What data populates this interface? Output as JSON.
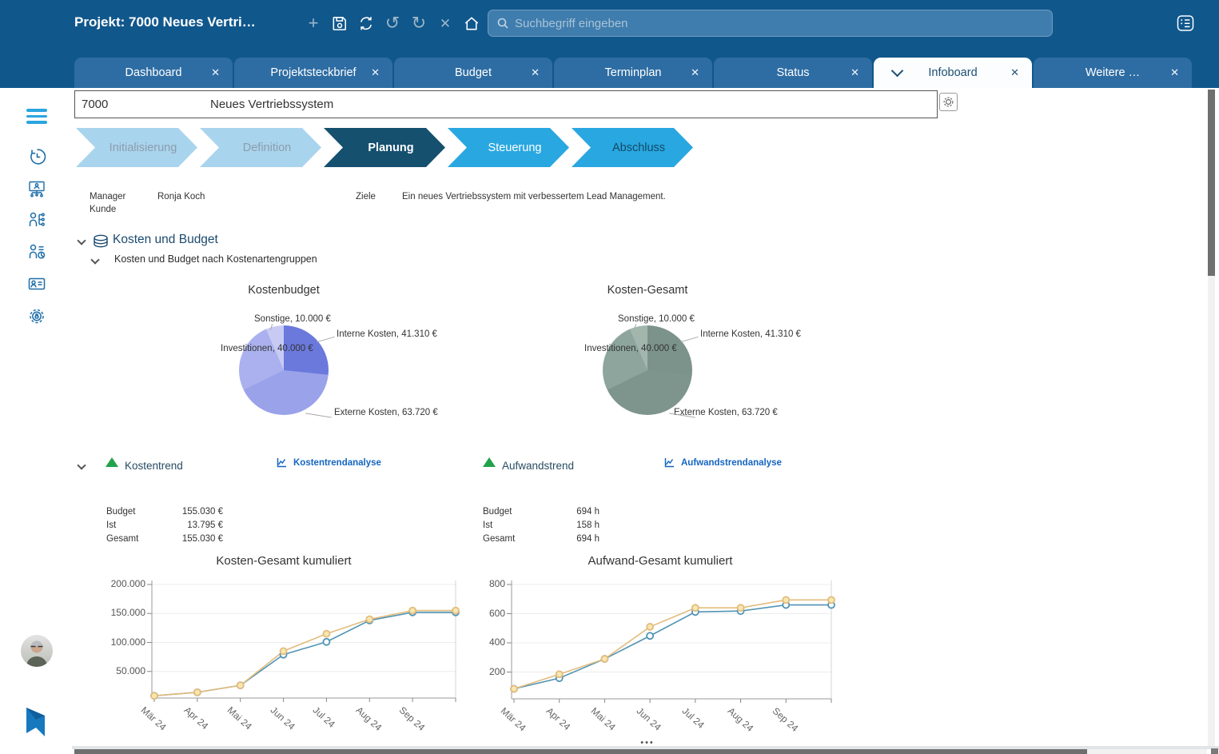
{
  "header": {
    "title": "Projekt: 7000 Neues Vertri…",
    "search_placeholder": "Suchbegriff eingeben",
    "toolbar_icons": [
      "add",
      "save",
      "refresh",
      "undo",
      "redo",
      "close",
      "home",
      "search",
      "protocol"
    ]
  },
  "tabs": [
    {
      "label": "Dashboard",
      "active": false
    },
    {
      "label": "Projektsteckbrief",
      "active": false
    },
    {
      "label": "Budget",
      "active": false
    },
    {
      "label": "Terminplan",
      "active": false
    },
    {
      "label": "Status",
      "active": false
    },
    {
      "label": "Infoboard",
      "active": true
    },
    {
      "label": "Weitere …",
      "active": false
    }
  ],
  "sidebar": {
    "items": [
      "menu",
      "history",
      "projects",
      "resources",
      "reports",
      "contacts",
      "administration"
    ]
  },
  "project": {
    "code": "7000",
    "name": "Neues Vertriebssystem"
  },
  "phases": [
    {
      "label": "Initialisierung"
    },
    {
      "label": "Definition"
    },
    {
      "label": "Planung",
      "active": true
    },
    {
      "label": "Steuerung"
    },
    {
      "label": "Abschluss"
    }
  ],
  "details": {
    "manager_label": "Manager",
    "manager_value": "Ronja Koch",
    "kunde_label": "Kunde",
    "ziele_label": "Ziele",
    "ziele_value": "Ein neues Vertriebssystem mit verbessertem Lead Management."
  },
  "sections": {
    "kosten_budget": {
      "title": "Kosten und Budget",
      "subtitle": "Kosten und Budget nach Kostenartengruppen"
    },
    "kostentrend": {
      "title": "Kostentrend",
      "link": "Kostentrendanalyse"
    },
    "aufwandstrend": {
      "title": "Aufwandstrend",
      "link": "Aufwandstrendanalyse"
    }
  },
  "stats": {
    "kosten": {
      "rows": [
        {
          "label": "Budget",
          "value": "155.030 €"
        },
        {
          "label": "Ist",
          "value": "13.795 €"
        },
        {
          "label": "Gesamt",
          "value": "155.030 €"
        }
      ]
    },
    "aufwand": {
      "rows": [
        {
          "label": "Budget",
          "value": "694 h"
        },
        {
          "label": "Ist",
          "value": "158 h"
        },
        {
          "label": "Gesamt",
          "value": "694 h"
        }
      ]
    }
  },
  "chart_data": [
    {
      "type": "pie",
      "title": "Kostenbudget",
      "unit": "€",
      "slices": [
        {
          "label": "Interne Kosten",
          "value": 41310,
          "display": "Interne Kosten, 41.310 €",
          "color": "#6b79dd"
        },
        {
          "label": "Externe Kosten",
          "value": 63720,
          "display": "Externe Kosten, 63.720 €",
          "color": "#9aa2ea"
        },
        {
          "label": "Investitionen",
          "value": 40000,
          "display": "Investitionen, 40.000 €",
          "color": "#aab1ee"
        },
        {
          "label": "Sonstige",
          "value": 10000,
          "display": "Sonstige, 10.000 €",
          "color": "#c7cbf4"
        }
      ]
    },
    {
      "type": "pie",
      "title": "Kosten-Gesamt",
      "unit": "€",
      "slices": [
        {
          "label": "Interne Kosten",
          "value": 41310,
          "display": "Interne Kosten, 41.310 €",
          "color": "#7c938b"
        },
        {
          "label": "Externe Kosten",
          "value": 63720,
          "display": "Externe Kosten, 63.720 €",
          "color": "#7e958d"
        },
        {
          "label": "Investitionen",
          "value": 40000,
          "display": "Investitionen, 40.000 €",
          "color": "#8da59d"
        },
        {
          "label": "Sonstige",
          "value": 10000,
          "display": "Sonstige, 10.000 €",
          "color": "#a2b6ae"
        }
      ]
    },
    {
      "type": "line",
      "title": "Kosten-Gesamt kumuliert",
      "x": [
        "Mär 24",
        "Apr 24",
        "Mai 24",
        "Jun 24",
        "Jul 24",
        "Aug 24",
        "Sep 24",
        ""
      ],
      "ylim": [
        0,
        200000
      ],
      "yticks": [
        {
          "value": 200000,
          "label": "200.000"
        },
        {
          "value": 150000,
          "label": "150.000"
        },
        {
          "value": 100000,
          "label": "100.000"
        },
        {
          "value": 50000,
          "label": "50.000"
        }
      ],
      "grid": true,
      "legend": "none",
      "series": [
        {
          "name": "blue",
          "color": "#5094b5",
          "marker_fill": "#ffffff",
          "values": [
            8000,
            14000,
            26000,
            79000,
            101000,
            138000,
            152000,
            152000
          ]
        },
        {
          "name": "orange",
          "color": "#e3bc7d",
          "marker_fill": "#f7e7b0",
          "values": [
            8000,
            14000,
            26000,
            85000,
            115000,
            140000,
            155030,
            155030
          ]
        }
      ]
    },
    {
      "type": "line",
      "title": "Aufwand-Gesamt kumuliert",
      "x": [
        "Mär 24",
        "Apr 24",
        "Mai 24",
        "Jun 24",
        "Jul 24",
        "Aug 24",
        "Sep 24",
        ""
      ],
      "ylim": [
        0,
        800
      ],
      "yticks": [
        {
          "value": 800,
          "label": "800"
        },
        {
          "value": 600,
          "label": "600"
        },
        {
          "value": 400,
          "label": "400"
        },
        {
          "value": 200,
          "label": "200"
        }
      ],
      "grid": true,
      "legend": "none",
      "series": [
        {
          "name": "blue",
          "color": "#5094b5",
          "marker_fill": "#ffffff",
          "values": [
            85,
            158,
            290,
            448,
            612,
            618,
            660,
            660
          ]
        },
        {
          "name": "orange",
          "color": "#e3bc7d",
          "marker_fill": "#f7e7b0",
          "values": [
            85,
            185,
            290,
            510,
            640,
            640,
            694,
            694
          ]
        }
      ]
    }
  ]
}
